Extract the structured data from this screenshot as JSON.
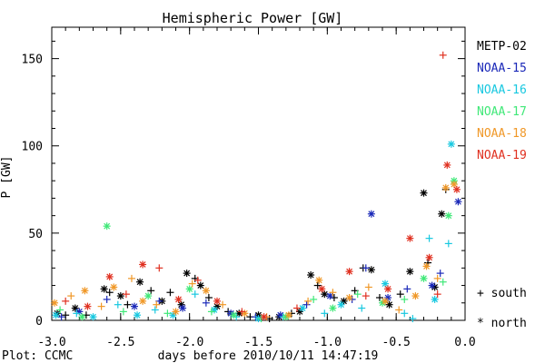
{
  "chart_data": {
    "type": "scatter",
    "title": "Hemispheric Power [GW]",
    "xlabel": "days before 2010/10/11 14:47:19",
    "ylabel": "P [GW]",
    "footer": "Plot: CCMC",
    "xlim": [
      -3.0,
      0.0
    ],
    "ylim": [
      0,
      168
    ],
    "xticks": [
      "-3.0",
      "-2.5",
      "-2.0",
      "-1.5",
      "-1.0",
      "-0.5",
      "0.0"
    ],
    "yticks": [
      "0",
      "50",
      "100",
      "150"
    ],
    "markers": [
      {
        "symbol": "+",
        "label": "+ south"
      },
      {
        "symbol": "*",
        "label": "* north"
      }
    ],
    "series": [
      {
        "name": "METP-02",
        "color": "#000000",
        "points": [
          [
            -2.96,
            4,
            "*"
          ],
          [
            -2.9,
            3,
            "+"
          ],
          [
            -2.83,
            7,
            "*"
          ],
          [
            -2.75,
            3,
            "+"
          ],
          [
            -2.62,
            18,
            "*"
          ],
          [
            -2.58,
            16,
            "+"
          ],
          [
            -2.5,
            14,
            "*"
          ],
          [
            -2.45,
            9,
            "+"
          ],
          [
            -2.36,
            22,
            "*"
          ],
          [
            -2.28,
            17,
            "+"
          ],
          [
            -2.2,
            11,
            "*"
          ],
          [
            -2.14,
            16,
            "+"
          ],
          [
            -2.06,
            9,
            "*"
          ],
          [
            -2.02,
            27,
            "*"
          ],
          [
            -1.96,
            24,
            "+"
          ],
          [
            -1.92,
            20,
            "*"
          ],
          [
            -1.86,
            13,
            "+"
          ],
          [
            -1.8,
            8,
            "*"
          ],
          [
            -1.72,
            5,
            "+"
          ],
          [
            -1.64,
            4,
            "*"
          ],
          [
            -1.56,
            2,
            "+"
          ],
          [
            -1.5,
            3,
            "*"
          ],
          [
            -1.42,
            1,
            "+"
          ],
          [
            -1.35,
            2,
            "*"
          ],
          [
            -1.26,
            4,
            "+"
          ],
          [
            -1.2,
            5,
            "*"
          ],
          [
            -1.12,
            26,
            "*"
          ],
          [
            -1.07,
            20,
            "+"
          ],
          [
            -1.02,
            15,
            "*"
          ],
          [
            -0.95,
            13,
            "+"
          ],
          [
            -0.88,
            11,
            "*"
          ],
          [
            -0.8,
            17,
            "+"
          ],
          [
            -0.74,
            30,
            "+"
          ],
          [
            -0.68,
            29,
            "*"
          ],
          [
            -0.62,
            13,
            "+"
          ],
          [
            -0.55,
            9,
            "*"
          ],
          [
            -0.47,
            15,
            "+"
          ],
          [
            -0.4,
            28,
            "*"
          ],
          [
            -0.3,
            73,
            "*"
          ],
          [
            -0.27,
            33,
            "+"
          ],
          [
            -0.22,
            19,
            "*"
          ],
          [
            -0.17,
            61,
            "*"
          ],
          [
            -0.14,
            75,
            "+"
          ]
        ]
      },
      {
        "name": "NOAA-15",
        "color": "#1a28b8",
        "points": [
          [
            -2.93,
            2,
            "+"
          ],
          [
            -2.8,
            5,
            "*"
          ],
          [
            -2.6,
            12,
            "+"
          ],
          [
            -2.4,
            8,
            "*"
          ],
          [
            -2.22,
            11,
            "+"
          ],
          [
            -2.05,
            7,
            "*"
          ],
          [
            -1.88,
            10,
            "+"
          ],
          [
            -1.7,
            4,
            "*"
          ],
          [
            -1.52,
            2,
            "+"
          ],
          [
            -1.34,
            3,
            "*"
          ],
          [
            -1.15,
            9,
            "+"
          ],
          [
            -0.98,
            14,
            "*"
          ],
          [
            -0.82,
            12,
            "+"
          ],
          [
            -0.72,
            30,
            "+"
          ],
          [
            -0.68,
            61,
            "*"
          ],
          [
            -0.56,
            13,
            "*"
          ],
          [
            -0.42,
            18,
            "+"
          ],
          [
            -0.24,
            20,
            "*"
          ],
          [
            -0.18,
            27,
            "+"
          ],
          [
            -0.05,
            68,
            "*"
          ]
        ]
      },
      {
        "name": "NOAA-16",
        "color": "#18c8e0",
        "points": [
          [
            -2.97,
            3,
            "*"
          ],
          [
            -2.82,
            4,
            "+"
          ],
          [
            -2.7,
            2,
            "*"
          ],
          [
            -2.52,
            9,
            "+"
          ],
          [
            -2.38,
            3,
            "*"
          ],
          [
            -2.25,
            6,
            "+"
          ],
          [
            -2.12,
            3,
            "*"
          ],
          [
            -1.96,
            15,
            "+"
          ],
          [
            -1.82,
            6,
            "*"
          ],
          [
            -1.66,
            2,
            "+"
          ],
          [
            -1.5,
            1,
            "*"
          ],
          [
            -1.32,
            2,
            "+"
          ],
          [
            -1.18,
            7,
            "*"
          ],
          [
            -1.02,
            4,
            "+"
          ],
          [
            -0.9,
            9,
            "*"
          ],
          [
            -0.75,
            7,
            "+"
          ],
          [
            -0.58,
            21,
            "*"
          ],
          [
            -0.44,
            4,
            "+"
          ],
          [
            -0.38,
            1,
            "+"
          ],
          [
            -0.26,
            47,
            "+"
          ],
          [
            -0.22,
            12,
            "*"
          ],
          [
            -0.12,
            44,
            "+"
          ],
          [
            -0.1,
            101,
            "*"
          ]
        ]
      },
      {
        "name": "NOAA-17",
        "color": "#40e878",
        "points": [
          [
            -2.94,
            6,
            "+"
          ],
          [
            -2.78,
            2,
            "*"
          ],
          [
            -2.6,
            54,
            "*"
          ],
          [
            -2.48,
            5,
            "+"
          ],
          [
            -2.3,
            14,
            "*"
          ],
          [
            -2.16,
            4,
            "+"
          ],
          [
            -2.0,
            18,
            "*"
          ],
          [
            -1.84,
            5,
            "+"
          ],
          [
            -1.68,
            3,
            "*"
          ],
          [
            -1.48,
            1,
            "+"
          ],
          [
            -1.3,
            2,
            "*"
          ],
          [
            -1.1,
            12,
            "+"
          ],
          [
            -0.96,
            7,
            "*"
          ],
          [
            -0.78,
            15,
            "+"
          ],
          [
            -0.6,
            10,
            "*"
          ],
          [
            -0.44,
            12,
            "+"
          ],
          [
            -0.3,
            24,
            "*"
          ],
          [
            -0.16,
            22,
            "+"
          ],
          [
            -0.12,
            60,
            "*"
          ],
          [
            -0.08,
            80,
            "*"
          ]
        ]
      },
      {
        "name": "NOAA-18",
        "color": "#f09828",
        "points": [
          [
            -2.98,
            10,
            "*"
          ],
          [
            -2.86,
            14,
            "+"
          ],
          [
            -2.76,
            17,
            "*"
          ],
          [
            -2.64,
            8,
            "+"
          ],
          [
            -2.55,
            19,
            "*"
          ],
          [
            -2.42,
            24,
            "+"
          ],
          [
            -2.34,
            11,
            "*"
          ],
          [
            -2.24,
            9,
            "+"
          ],
          [
            -2.1,
            5,
            "*"
          ],
          [
            -1.98,
            21,
            "+"
          ],
          [
            -1.88,
            17,
            "*"
          ],
          [
            -1.76,
            9,
            "+"
          ],
          [
            -1.6,
            4,
            "*"
          ],
          [
            -1.44,
            2,
            "+"
          ],
          [
            -1.28,
            3,
            "*"
          ],
          [
            -1.14,
            11,
            "+"
          ],
          [
            -1.06,
            23,
            "*"
          ],
          [
            -0.96,
            16,
            "+"
          ],
          [
            -0.84,
            13,
            "*"
          ],
          [
            -0.7,
            19,
            "+"
          ],
          [
            -0.58,
            11,
            "*"
          ],
          [
            -0.48,
            6,
            "+"
          ],
          [
            -0.36,
            14,
            "*"
          ],
          [
            -0.28,
            31,
            "*"
          ],
          [
            -0.2,
            24,
            "+"
          ],
          [
            -0.14,
            76,
            "*"
          ],
          [
            -0.08,
            78,
            "*"
          ]
        ]
      },
      {
        "name": "NOAA-19",
        "color": "#e03020",
        "points": [
          [
            -2.9,
            11,
            "+"
          ],
          [
            -2.74,
            8,
            "*"
          ],
          [
            -2.58,
            25,
            "*"
          ],
          [
            -2.46,
            15,
            "+"
          ],
          [
            -2.34,
            32,
            "*"
          ],
          [
            -2.22,
            30,
            "+"
          ],
          [
            -2.08,
            12,
            "*"
          ],
          [
            -1.94,
            23,
            "+"
          ],
          [
            -1.8,
            11,
            "*"
          ],
          [
            -1.62,
            5,
            "+"
          ],
          [
            -1.46,
            2,
            "*"
          ],
          [
            -1.22,
            7,
            "+"
          ],
          [
            -1.04,
            18,
            "*"
          ],
          [
            -0.84,
            28,
            "*"
          ],
          [
            -0.72,
            14,
            "+"
          ],
          [
            -0.56,
            18,
            "*"
          ],
          [
            -0.4,
            47,
            "*"
          ],
          [
            -0.26,
            36,
            "*"
          ],
          [
            -0.2,
            15,
            "+"
          ],
          [
            -0.16,
            152,
            "+"
          ],
          [
            -0.13,
            89,
            "*"
          ],
          [
            -0.06,
            75,
            "*"
          ]
        ]
      }
    ]
  }
}
